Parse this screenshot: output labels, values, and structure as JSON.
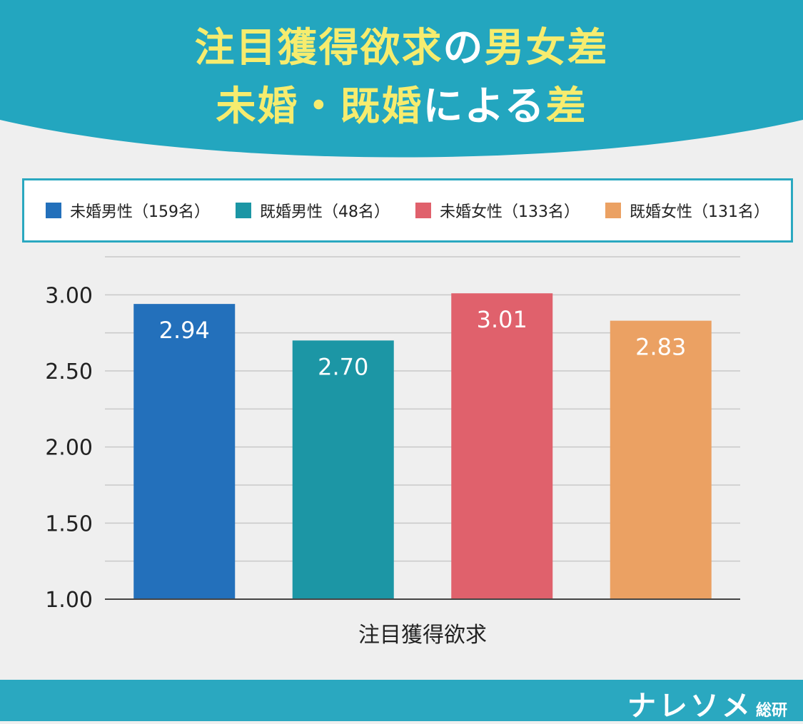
{
  "title": {
    "line1": [
      {
        "text": "注目獲得欲求",
        "style": "hl"
      },
      {
        "text": "の",
        "style": "wt"
      },
      {
        "text": "男女差",
        "style": "hl"
      }
    ],
    "line2": [
      {
        "text": "未婚・既婚",
        "style": "hl"
      },
      {
        "text": "による",
        "style": "wt"
      },
      {
        "text": "差",
        "style": "hl"
      }
    ]
  },
  "colors": {
    "header": "#23a6bf",
    "title_highlight": "#f6ec6e",
    "border": "#2aa8c0",
    "grid": "#c9c9c9"
  },
  "legend": [
    {
      "label": "未婚男性（159名）",
      "color": "#2370bb"
    },
    {
      "label": "既婚男性（48名）",
      "color": "#1c96a5"
    },
    {
      "label": "未婚女性（133名）",
      "color": "#e0616c"
    },
    {
      "label": "既婚女性（131名）",
      "color": "#eba163"
    }
  ],
  "chart_data": {
    "type": "bar",
    "categories": [
      "注目獲得欲求"
    ],
    "series": [
      {
        "name": "未婚男性（159名）",
        "values": [
          2.94
        ],
        "color": "#2370bb",
        "label": "2.94"
      },
      {
        "name": "既婚男性（48名）",
        "values": [
          2.7
        ],
        "color": "#1c96a5",
        "label": "2.70"
      },
      {
        "name": "未婚女性（133名）",
        "values": [
          3.01
        ],
        "color": "#e0616c",
        "label": "3.01"
      },
      {
        "name": "既婚女性（131名）",
        "values": [
          2.83
        ],
        "color": "#eba163",
        "label": "2.83"
      }
    ],
    "ylim": [
      1.0,
      3.25
    ],
    "yticks": [
      "1.00",
      "1.50",
      "2.00",
      "2.50",
      "3.00"
    ],
    "minor_step": 0.25,
    "grid": true,
    "legend_position": "top",
    "xlabel": "",
    "ylabel": "",
    "title": "注目獲得欲求の男女差 未婚・既婚による差"
  },
  "footer": {
    "logo_main": "ナレソメ",
    "logo_sub": "総研"
  }
}
